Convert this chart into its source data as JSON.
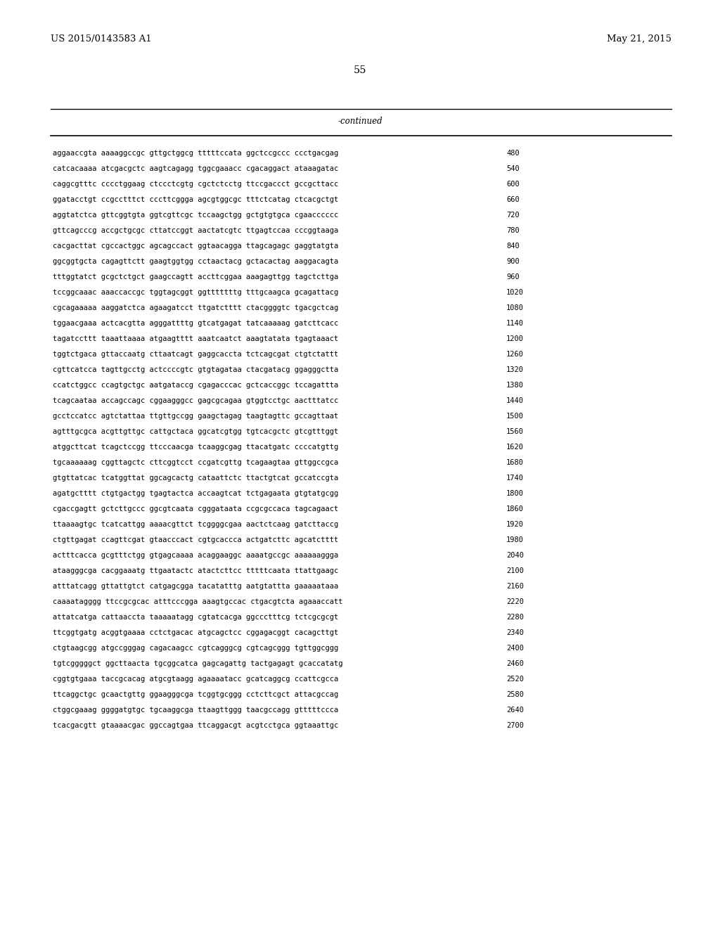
{
  "header_left": "US 2015/0143583 A1",
  "header_right": "May 21, 2015",
  "page_number": "55",
  "continued_label": "-continued",
  "background_color": "#ffffff",
  "text_color": "#000000",
  "font_size": 7.5,
  "header_font_size": 9.5,
  "page_num_font_size": 10.5,
  "continued_font_size": 8.5,
  "sequence_lines": [
    [
      "aggaaccgta aaaaggccgc gttgctggcg tttttccata ggctccgccc ccctgacgag",
      "480"
    ],
    [
      "catcacaaaa atcgacgctc aagtcagagg tggcgaaacc cgacaggact ataaagatac",
      "540"
    ],
    [
      "caggcgtttc cccctggaag ctccctcgtg cgctctcctg ttccgaccct gccgcttacc",
      "600"
    ],
    [
      "ggatacctgt ccgcctttct cccttcggga agcgtggcgc tttctcatag ctcacgctgt",
      "660"
    ],
    [
      "aggtatctca gttcggtgta ggtcgttcgc tccaagctgg gctgtgtgca cgaacccccc",
      "720"
    ],
    [
      "gttcagcccg accgctgcgc cttatccggt aactatcgtc ttgagtccaa cccggtaaga",
      "780"
    ],
    [
      "cacgacttat cgccactggc agcagccact ggtaacagga ttagcagagc gaggtatgta",
      "840"
    ],
    [
      "ggcggtgcta cagagttctt gaagtggtgg cctaactacg gctacactag aaggacagta",
      "900"
    ],
    [
      "tttggtatct gcgctctgct gaagccagtt accttcggaa aaagagttgg tagctcttga",
      "960"
    ],
    [
      "tccggcaaac aaaccaccgc tggtagcggt ggtttttttg tttgcaagca gcagattacg",
      "1020"
    ],
    [
      "cgcagaaaaa aaggatctca agaagatcct ttgatctttt ctacggggtc tgacgctcag",
      "1080"
    ],
    [
      "tggaacgaaa actcacgtta agggattttg gtcatgagat tatcaaaaag gatcttcacc",
      "1140"
    ],
    [
      "tagatccttt taaattaaaa atgaagtttt aaatcaatct aaagtatata tgagtaaact",
      "1200"
    ],
    [
      "tggtctgaca gttaccaatg cttaatcagt gaggcaccta tctcagcgat ctgtctattt",
      "1260"
    ],
    [
      "cgttcatcca tagttgcctg actccccgtc gtgtagataa ctacgatacg ggagggctta",
      "1320"
    ],
    [
      "ccatctggcc ccagtgctgc aatgataccg cgagacccac gctcaccggc tccagattta",
      "1380"
    ],
    [
      "tcagcaataa accagccagc cggaagggcc gagcgcagaa gtggtcctgc aactttatcc",
      "1440"
    ],
    [
      "gcctccatcc agtctattaa ttgttgccgg gaagctagag taagtagttc gccagttaat",
      "1500"
    ],
    [
      "agtttgcgca acgttgttgc cattgctaca ggcatcgtgg tgtcacgctc gtcgtttggt",
      "1560"
    ],
    [
      "atggcttcat tcagctccgg ttcccaacga tcaaggcgag ttacatgatc ccccatgttg",
      "1620"
    ],
    [
      "tgcaaaaaag cggttagctc cttcggtcct ccgatcgttg tcagaagtaa gttggccgca",
      "1680"
    ],
    [
      "gtgttatcac tcatggttat ggcagcactg cataattctc ttactgtcat gccatccgta",
      "1740"
    ],
    [
      "agatgctttt ctgtgactgg tgagtactca accaagtcat tctgagaata gtgtatgcgg",
      "1800"
    ],
    [
      "cgaccgagtt gctcttgccc ggcgtcaata cgggataata ccgcgccaca tagcagaact",
      "1860"
    ],
    [
      "ttaaaagtgc tcatcattgg aaaacgttct tcggggcgaa aactctcaag gatcttaccg",
      "1920"
    ],
    [
      "ctgttgagat ccagttcgat gtaacccact cgtgcaccca actgatcttc agcatctttt",
      "1980"
    ],
    [
      "actttcacca gcgtttctgg gtgagcaaaa acaggaaggc aaaatgccgc aaaaaaggga",
      "2040"
    ],
    [
      "ataagggcga cacggaaatg ttgaatactc atactcttcc tttttcaata ttattgaagc",
      "2100"
    ],
    [
      "atttatcagg gttattgtct catgagcgga tacatatttg aatgtattta gaaaaataaa",
      "2160"
    ],
    [
      "caaaatagggg ttccgcgcac atttcccgga aaagtgccac ctgacgtcta agaaaccatt",
      "2220"
    ],
    [
      "attatcatga cattaaccta taaaaatagg cgtatcacga ggccctttcg tctcgcgcgt",
      "2280"
    ],
    [
      "ttcggtgatg acggtgaaaa cctctgacac atgcagctcc cggagacggt cacagcttgt",
      "2340"
    ],
    [
      "ctgtaagcgg atgccgggag cagacaagcc cgtcagggcg cgtcagcggg tgttggcggg",
      "2400"
    ],
    [
      "tgtcgggggct ggcttaacta tgcggcatca gagcagattg tactgagagt gcaccatatg",
      "2460"
    ],
    [
      "cggtgtgaaa taccgcacag atgcgtaagg agaaaatacc gcatcaggcg ccattcgcca",
      "2520"
    ],
    [
      "ttcaggctgc gcaactgttg ggaagggcga tcggtgcggg cctcttcgct attacgccag",
      "2580"
    ],
    [
      "ctggcgaaag ggggatgtgc tgcaaggcga ttaagttggg taacgccagg gtttttccca",
      "2640"
    ],
    [
      "tcacgacgtt gtaaaacgac ggccagtgaa ttcaggacgt acgtcctgca ggtaaattgc",
      "2700"
    ]
  ]
}
